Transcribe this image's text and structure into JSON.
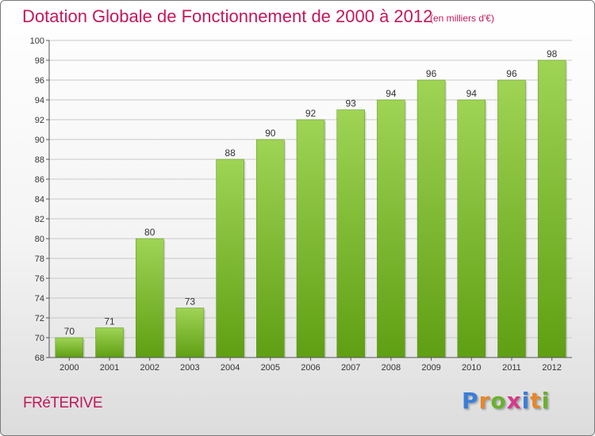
{
  "title": "Dotation Globale de Fonctionnement de 2000 à 2012",
  "subtitle": "(en milliers d'€)",
  "place": "FRéTERIVE",
  "logo": {
    "letters": [
      "P",
      "r",
      "o",
      "x",
      "i",
      "t",
      "i"
    ],
    "colors": [
      "#3b7dd8",
      "#e8862b",
      "#6bb12c",
      "#d63a8a",
      "#3b7dd8",
      "#e8862b",
      "#6bb12c"
    ]
  },
  "colors": {
    "bar_top": "#9fd455",
    "bar_bottom": "#5f9f13",
    "accent": "#c2185b",
    "grid": "#c8c8c8"
  },
  "chart_data": {
    "type": "bar",
    "categories": [
      "2000",
      "2001",
      "2002",
      "2003",
      "2004",
      "2005",
      "2006",
      "2007",
      "2008",
      "2009",
      "2010",
      "2011",
      "2012"
    ],
    "values": [
      70,
      71,
      80,
      73,
      88,
      90,
      92,
      93,
      94,
      96,
      94,
      96,
      98
    ],
    "ylim": [
      68,
      100
    ],
    "yticks": [
      68,
      70,
      72,
      74,
      76,
      78,
      80,
      82,
      84,
      86,
      88,
      90,
      92,
      94,
      96,
      98,
      100
    ],
    "grid": true,
    "xlabel": "",
    "ylabel": ""
  }
}
